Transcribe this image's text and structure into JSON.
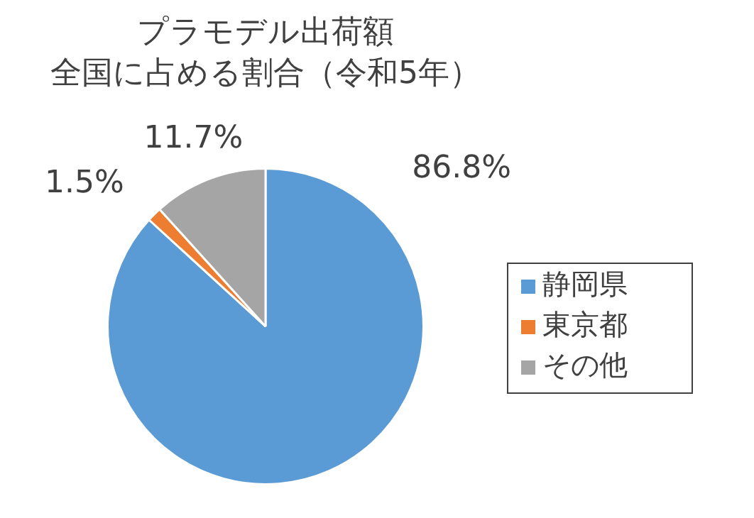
{
  "chart_data": {
    "type": "pie",
    "title": "プラモデル出荷額",
    "subtitle": "全国に占める割合（令和5年）",
    "categories": [
      "静岡県",
      "東京都",
      "その他"
    ],
    "values": [
      86.8,
      1.5,
      11.7
    ],
    "colors": [
      "#5b9bd5",
      "#ed7d31",
      "#a5a5a5"
    ],
    "value_labels": [
      "86.8%",
      "1.5%",
      "11.7%"
    ],
    "legend": "right"
  }
}
